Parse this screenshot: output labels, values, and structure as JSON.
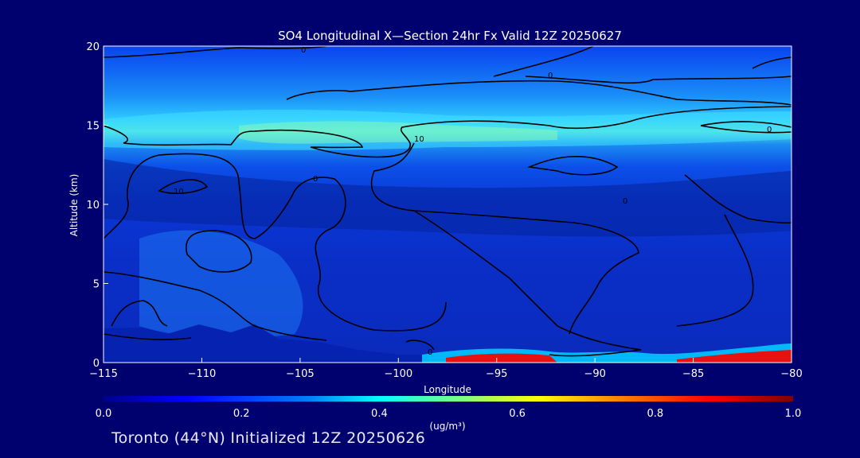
{
  "chart_data": {
    "type": "heatmap",
    "title": "SO4 Longitudinal X—Section 24hr  Fx Valid 12Z 20250627",
    "xlabel": "Longitude",
    "ylabel": "Altitude (km)",
    "xlim": [
      -115,
      -80
    ],
    "ylim": [
      0,
      20
    ],
    "xticks": [
      -115,
      -110,
      -105,
      -100,
      -95,
      -90,
      -85,
      -80
    ],
    "xtick_labels": [
      "−115",
      "−110",
      "−105",
      "−100",
      "−95",
      "−90",
      "−85",
      "−80"
    ],
    "yticks": [
      0,
      5,
      10,
      15,
      20
    ],
    "ytick_labels": [
      "0",
      "5",
      "10",
      "15",
      "20"
    ],
    "colorbar": {
      "min": 0.0,
      "max": 1.0,
      "ticks": [
        0.0,
        0.2,
        0.4,
        0.6,
        0.8,
        1.0
      ],
      "tick_labels": [
        "0.0",
        "0.2",
        "0.4",
        "0.6",
        "0.8",
        "1.0"
      ],
      "unit": "(ug/m³)",
      "colormap": [
        "#00008f",
        "#0000ff",
        "#0080ff",
        "#00ffff",
        "#80ff80",
        "#ffff00",
        "#ff8000",
        "#ff0000",
        "#800000"
      ]
    },
    "contour_labels": [
      "0",
      "0",
      "10",
      "10",
      "0",
      "0",
      "0",
      "0"
    ]
  },
  "footer": "Toronto (44°N) Initialized 12Z 20250626",
  "colors": {
    "background": "#00006e",
    "plot_base": "#0c3ce6",
    "text": "#ffffff",
    "contour": "#000000"
  }
}
